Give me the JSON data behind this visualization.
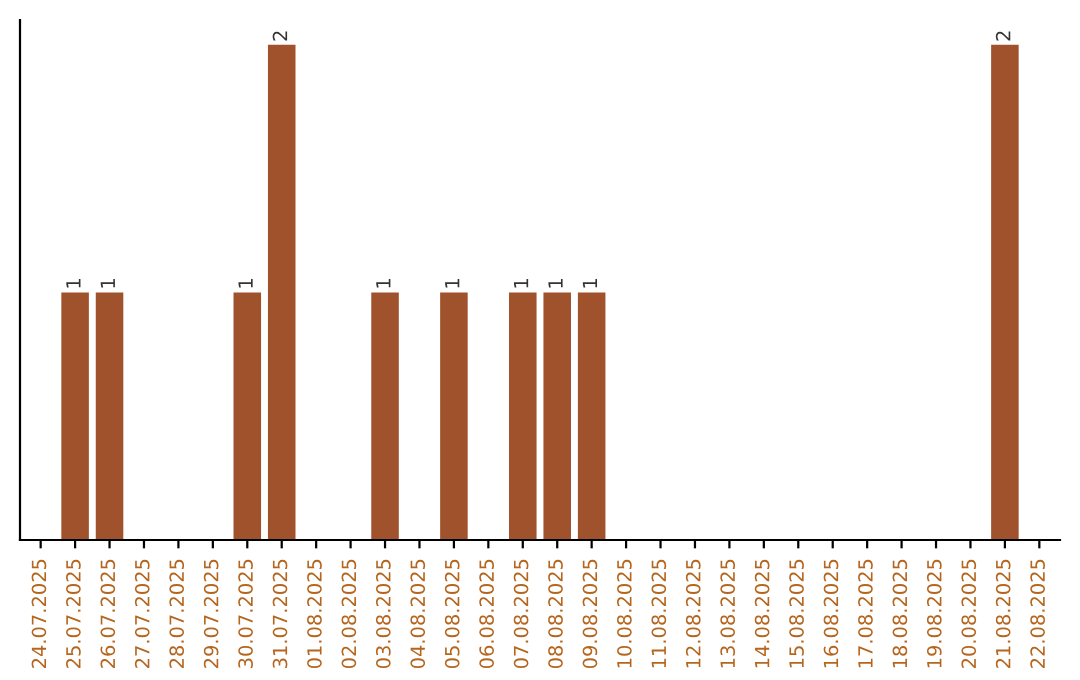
{
  "chart_data": {
    "type": "bar",
    "categories": [
      "24.07.2025",
      "25.07.2025",
      "26.07.2025",
      "27.07.2025",
      "28.07.2025",
      "29.07.2025",
      "30.07.2025",
      "31.07.2025",
      "01.08.2025",
      "02.08.2025",
      "03.08.2025",
      "04.08.2025",
      "05.08.2025",
      "06.08.2025",
      "07.08.2025",
      "08.08.2025",
      "09.08.2025",
      "10.08.2025",
      "11.08.2025",
      "12.08.2025",
      "13.08.2025",
      "14.08.2025",
      "15.08.2025",
      "16.08.2025",
      "17.08.2025",
      "18.08.2025",
      "19.08.2025",
      "20.08.2025",
      "21.08.2025",
      "22.08.2025"
    ],
    "values": [
      null,
      1,
      1,
      null,
      null,
      null,
      1,
      2,
      null,
      null,
      1,
      null,
      1,
      null,
      1,
      1,
      1,
      null,
      null,
      null,
      null,
      null,
      null,
      null,
      null,
      null,
      null,
      null,
      2,
      null
    ],
    "color": "#a0522d",
    "data_labels": true,
    "tick_labels": "x",
    "grid": false
  }
}
